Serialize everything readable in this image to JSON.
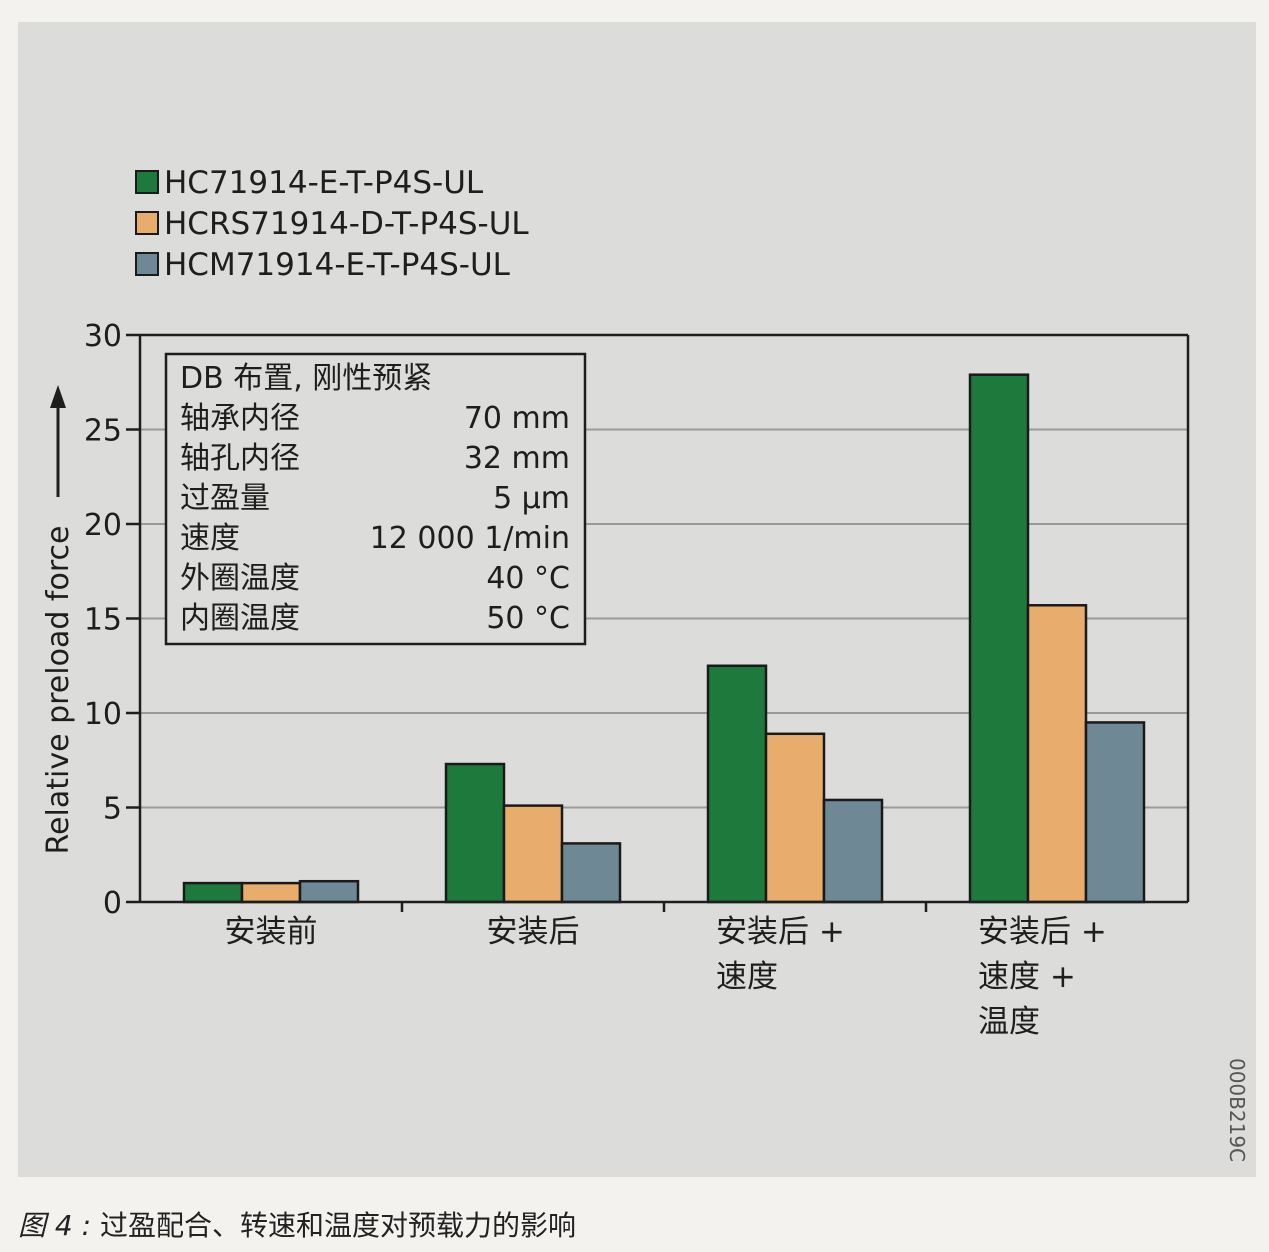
{
  "chart_data": {
    "type": "bar",
    "categories": [
      [
        "安装前"
      ],
      [
        "安装后"
      ],
      [
        "安装后 +",
        "速度"
      ],
      [
        "安装后 +",
        "速度 +",
        "温度"
      ]
    ],
    "series": [
      {
        "name": "HC71914-E-T-P4S-UL",
        "color": "#1e7a3c",
        "values": [
          1.0,
          7.3,
          12.5,
          27.9
        ]
      },
      {
        "name": "HCRS71914-D-T-P4S-UL",
        "color": "#e8ad6c",
        "values": [
          1.0,
          5.1,
          8.9,
          15.7
        ]
      },
      {
        "name": "HCM71914-E-T-P4S-UL",
        "color": "#6e8896",
        "values": [
          1.1,
          3.1,
          5.4,
          9.5
        ]
      }
    ],
    "ylabel": "Relative preload force",
    "ylim": [
      0,
      30
    ],
    "yticks": [
      0,
      5,
      10,
      15,
      20,
      25,
      30
    ],
    "grid": true,
    "legend_position": "top-left"
  },
  "info_box": {
    "title": "DB 布置, 刚性预紧",
    "rows": [
      {
        "label": "轴承内径",
        "value": "70 mm"
      },
      {
        "label": "轴孔内径",
        "value": "32 mm"
      },
      {
        "label": "过盈量",
        "value": "5 µm"
      },
      {
        "label": "速度",
        "value": "12 000 1/min"
      },
      {
        "label": "外圈温度",
        "value": "40 °C"
      },
      {
        "label": "内圈温度",
        "value": "50 °C"
      }
    ]
  },
  "figure_code": "000B219C",
  "caption": {
    "label": "图 4 :",
    "text": "过盈配合、转速和温度对预载力的影响"
  },
  "colors": {
    "panel_background": "#dcdcda",
    "grid": "#9a9a9a"
  }
}
